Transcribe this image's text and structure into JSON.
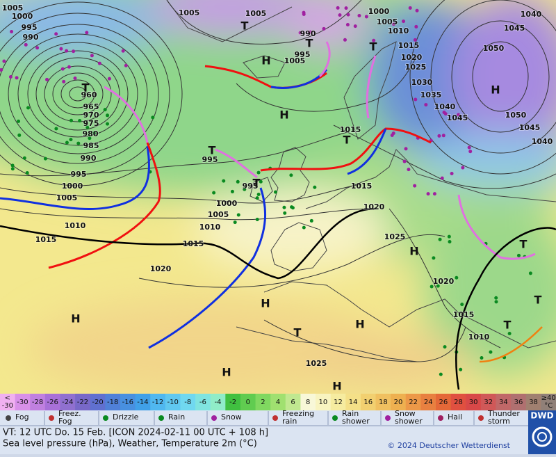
{
  "map": {
    "pressure_labels": [
      "1005",
      "1000",
      "995",
      "990",
      "1005",
      "1005",
      "1000",
      "1005",
      "1010",
      "1015",
      "1020",
      "1025",
      "1030",
      "1035",
      "1040",
      "1045",
      "1040",
      "1045",
      "1050",
      "1050",
      "1045",
      "1040",
      "990",
      "995",
      "1005",
      "960",
      "965",
      "970",
      "975",
      "980",
      "985",
      "990",
      "995",
      "1000",
      "1005",
      "1010",
      "1015",
      "995",
      "995",
      "1000",
      "1005",
      "1010",
      "1015",
      "1020",
      "1015",
      "1015",
      "1020",
      "1025",
      "1020",
      "1015",
      "1010",
      "1025"
    ],
    "highs": [
      "H",
      "H",
      "H",
      "H",
      "H",
      "H",
      "H",
      "H",
      "H"
    ],
    "lows": [
      "T",
      "T",
      "T",
      "T",
      "T",
      "T",
      "T",
      "T",
      "T",
      "T",
      "T"
    ]
  },
  "colorbar": {
    "low": [
      "<",
      "-30"
    ],
    "labels": [
      "-30",
      "-28",
      "-26",
      "-24",
      "-22",
      "-20",
      "-18",
      "-16",
      "-14",
      "-12",
      "-10",
      "-8",
      "-6",
      "-4",
      "-2",
      "0",
      "2",
      "4",
      "6",
      "8",
      "10",
      "12",
      "14",
      "16",
      "18",
      "20",
      "22",
      "24",
      "26",
      "28",
      "30",
      "32",
      "34",
      "36",
      "38"
    ],
    "high": [
      "≥40",
      "°C"
    ]
  },
  "legend": [
    [
      "Fog"
    ],
    [
      "Freez.",
      "Fog"
    ],
    [
      "Drizzle"
    ],
    [
      "Rain"
    ],
    [
      "Snow"
    ],
    [
      "Freezing",
      "rain"
    ],
    [
      "Rain",
      "shower"
    ],
    [
      "Snow",
      "shower"
    ],
    [
      "Hail"
    ],
    [
      "Thunder",
      "storm"
    ]
  ],
  "footer": {
    "line1": "VT: 12 UTC Do.   15 Feb. [ICON 2024-02-11   00 UTC + 108 h]",
    "line2": "Sea level pressure (hPa), Weather, Temperature 2m (°C)",
    "copyright": "© 2024 Deutscher Wetterdienst",
    "logo": "DWD"
  }
}
